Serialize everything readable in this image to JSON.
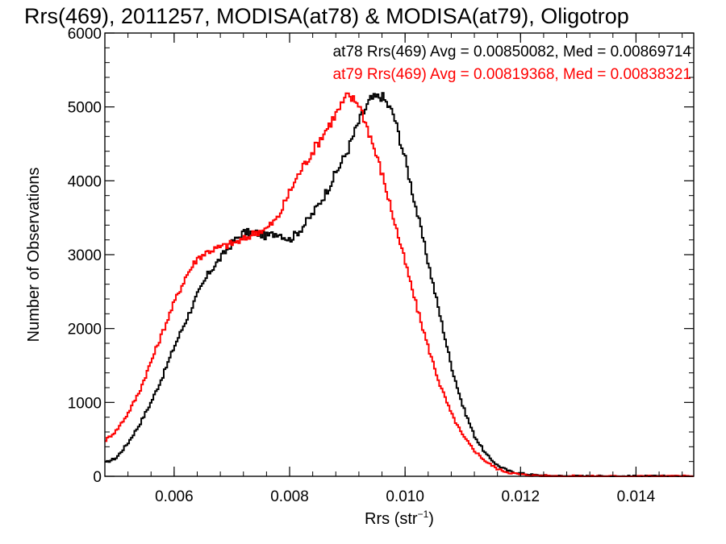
{
  "chart_data": {
    "type": "line",
    "title": "Rrs(469), 2011257, MODISA(at78) & MODISA(at79), Oligotrop",
    "xlabel": "Rrs (str",
    "xlabel_exp": "−1",
    "xlabel_close": ")",
    "ylabel": "Number of Observations",
    "xlim": [
      0.0048,
      0.015
    ],
    "ylim": [
      0,
      6000
    ],
    "x_ticks": [
      0.006,
      0.008,
      0.01,
      0.012,
      0.014
    ],
    "x_tick_labels": [
      "0.006",
      "0.008",
      "0.010",
      "0.012",
      "0.014"
    ],
    "y_ticks": [
      0,
      1000,
      2000,
      3000,
      4000,
      5000,
      6000
    ],
    "y_tick_labels": [
      "0",
      "1000",
      "2000",
      "3000",
      "4000",
      "5000",
      "6000"
    ],
    "grid": false,
    "legend_position": "top-right",
    "series": [
      {
        "name": "at78",
        "color": "#000000",
        "x": [
          0.0048,
          0.005,
          0.0052,
          0.0054,
          0.0056,
          0.0058,
          0.006,
          0.0062,
          0.0064,
          0.0066,
          0.0068,
          0.007,
          0.0072,
          0.0074,
          0.0076,
          0.0078,
          0.008,
          0.0082,
          0.0084,
          0.0086,
          0.0088,
          0.009,
          0.0092,
          0.0094,
          0.0096,
          0.0098,
          0.01,
          0.0102,
          0.0104,
          0.0106,
          0.0108,
          0.011,
          0.0112,
          0.0114,
          0.0116,
          0.0118,
          0.012,
          0.0122,
          0.0124,
          0.0126,
          0.0128,
          0.013,
          0.0134,
          0.014,
          0.015
        ],
        "y": [
          180,
          250,
          450,
          700,
          1000,
          1350,
          1750,
          2100,
          2450,
          2750,
          2950,
          3150,
          3300,
          3300,
          3250,
          3300,
          3200,
          3350,
          3550,
          3800,
          4100,
          4400,
          4800,
          5100,
          5150,
          4900,
          4300,
          3600,
          2900,
          2200,
          1500,
          950,
          550,
          300,
          150,
          70,
          40,
          20,
          10,
          5,
          3,
          2,
          1,
          0,
          0
        ]
      },
      {
        "name": "at79",
        "color": "#ff0000",
        "x": [
          0.0048,
          0.005,
          0.0052,
          0.0054,
          0.0056,
          0.0058,
          0.006,
          0.0062,
          0.0064,
          0.0066,
          0.0068,
          0.007,
          0.0072,
          0.0074,
          0.0076,
          0.0078,
          0.008,
          0.0082,
          0.0084,
          0.0086,
          0.0088,
          0.009,
          0.0092,
          0.0094,
          0.0096,
          0.0098,
          0.01,
          0.0102,
          0.0104,
          0.0106,
          0.0108,
          0.011,
          0.0112,
          0.0114,
          0.0116,
          0.0118,
          0.012,
          0.0122,
          0.0124,
          0.0126,
          0.0128,
          0.013,
          0.0134,
          0.014,
          0.015
        ],
        "y": [
          480,
          620,
          850,
          1150,
          1550,
          1950,
          2350,
          2700,
          2950,
          3050,
          3100,
          3150,
          3200,
          3300,
          3350,
          3500,
          3850,
          4150,
          4400,
          4650,
          4900,
          5150,
          5050,
          4600,
          4100,
          3500,
          2900,
          2300,
          1750,
          1250,
          850,
          550,
          350,
          200,
          100,
          50,
          25,
          12,
          6,
          3,
          2,
          1,
          0,
          0,
          0
        ]
      }
    ],
    "annotations": [
      {
        "text": "at78 Rrs(469) Avg = 0.00850082, Med = 0.00869714",
        "color": "#000000"
      },
      {
        "text": "at79 Rrs(469) Avg = 0.00819368, Med = 0.00838321",
        "color": "#ff0000"
      }
    ]
  }
}
